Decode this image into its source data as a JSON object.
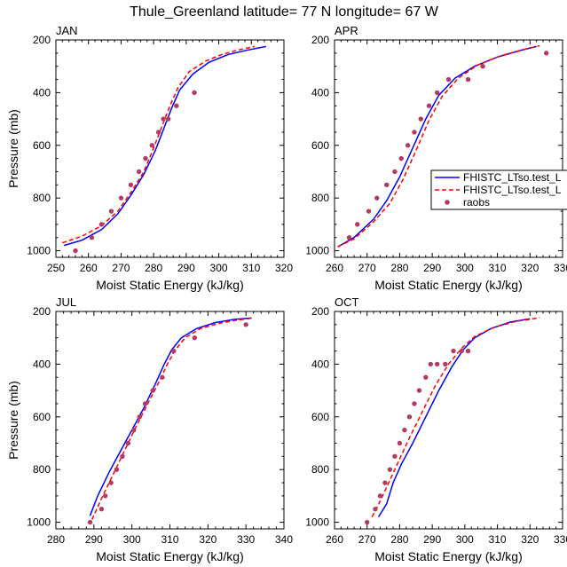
{
  "figure_title": "Thule_Greenland  latitude= 77 N longitude= 67 W",
  "legend": {
    "entries": [
      {
        "label": "FHISTC_LTso.test_L",
        "color": "#0000ff",
        "style": "solid"
      },
      {
        "label": "FHISTC_LTso.test_L",
        "color": "#ff0000",
        "style": "dashed"
      },
      {
        "label": "raobs",
        "color": "#b23b64",
        "style": "marker"
      }
    ]
  },
  "colors": {
    "series1": "#0000ff",
    "series2": "#ff0000",
    "obs": "#b23b64"
  },
  "chart_data": [
    {
      "type": "line",
      "panel": "JAN",
      "title": "JAN",
      "xlabel": "Moist Static Energy (kJ/kg)",
      "ylabel": "Pressure (mb)",
      "xlim": [
        250,
        320
      ],
      "ylim": [
        1025,
        200
      ],
      "xticks": [
        250,
        260,
        270,
        280,
        290,
        300,
        310,
        320
      ],
      "yticks": [
        200,
        400,
        600,
        800,
        1000
      ],
      "series": [
        {
          "name": "FHISTC_LTso.test_L",
          "style": "solid",
          "color": "#0000ff",
          "x": [
            252.5,
            258,
            264,
            269,
            273,
            277,
            280.5,
            283,
            285.5,
            288,
            292,
            297,
            303,
            309,
            314.5
          ],
          "y": [
            980,
            960,
            920,
            860,
            790,
            710,
            620,
            540,
            460,
            390,
            330,
            285,
            255,
            238,
            225
          ]
        },
        {
          "name": "FHISTC_LTso.test_L",
          "style": "dashed",
          "color": "#ff0000",
          "x": [
            252,
            258,
            264,
            269,
            273,
            277,
            280,
            282.5,
            285,
            287.5,
            291,
            296,
            301,
            306,
            311
          ],
          "y": [
            970,
            945,
            905,
            850,
            780,
            700,
            610,
            530,
            450,
            380,
            320,
            280,
            255,
            238,
            225
          ]
        },
        {
          "name": "raobs",
          "style": "marker",
          "color": "#b23b64",
          "x": [
            256,
            261,
            264,
            267,
            270,
            273,
            275.5,
            277.5,
            279.5,
            281.5,
            283,
            284.5,
            287,
            292.5
          ],
          "y": [
            1000,
            950,
            900,
            850,
            800,
            750,
            700,
            650,
            600,
            550,
            500,
            500,
            450,
            400
          ]
        }
      ]
    },
    {
      "type": "line",
      "panel": "APR",
      "title": "APR",
      "xlabel": "Moist Static Energy (kJ/kg)",
      "ylabel": "Pressure (mb)",
      "xlim": [
        260,
        330
      ],
      "ylim": [
        1025,
        200
      ],
      "xticks": [
        260,
        270,
        280,
        290,
        300,
        310,
        320,
        330
      ],
      "yticks": [
        200,
        400,
        600,
        800,
        1000
      ],
      "series": [
        {
          "name": "FHISTC_LTso.test_L",
          "style": "solid",
          "color": "#0000ff",
          "x": [
            261,
            266,
            272,
            276,
            280,
            284,
            288,
            292,
            297,
            303,
            310,
            317,
            322
          ],
          "y": [
            985,
            950,
            880,
            810,
            720,
            610,
            500,
            410,
            345,
            300,
            265,
            240,
            225
          ]
        },
        {
          "name": "FHISTC_LTso.test_L",
          "style": "dashed",
          "color": "#ff0000",
          "x": [
            261,
            266,
            272,
            277,
            281,
            285,
            289,
            293,
            298,
            304,
            311,
            318,
            323
          ],
          "y": [
            985,
            955,
            890,
            820,
            730,
            620,
            505,
            415,
            345,
            295,
            260,
            237,
            222
          ]
        },
        {
          "name": "raobs",
          "style": "marker",
          "color": "#b23b64",
          "x": [
            264.5,
            267,
            270.5,
            273,
            276,
            278.5,
            280.5,
            282.5,
            284.5,
            286.5,
            289,
            291.5,
            295,
            301,
            305.5,
            325
          ],
          "y": [
            950,
            900,
            850,
            800,
            750,
            700,
            650,
            600,
            550,
            500,
            450,
            400,
            350,
            350,
            300,
            250
          ]
        }
      ]
    },
    {
      "type": "line",
      "panel": "JUL",
      "title": "JUL",
      "xlabel": "Moist Static Energy (kJ/kg)",
      "ylabel": "Pressure (mb)",
      "xlim": [
        280,
        340
      ],
      "ylim": [
        1025,
        200
      ],
      "xticks": [
        280,
        290,
        300,
        310,
        320,
        330,
        340
      ],
      "yticks": [
        200,
        400,
        600,
        800,
        1000
      ],
      "series": [
        {
          "name": "FHISTC_LTso.test_L",
          "style": "solid",
          "color": "#0000ff",
          "x": [
            289,
            291,
            294,
            297,
            300,
            303,
            306,
            308.5,
            310.5,
            313,
            317,
            322,
            327,
            331.5
          ],
          "y": [
            975,
            900,
            810,
            730,
            650,
            570,
            480,
            400,
            345,
            300,
            265,
            242,
            230,
            225
          ]
        },
        {
          "name": "FHISTC_LTso.test_L",
          "style": "dashed",
          "color": "#ff0000",
          "x": [
            289.5,
            292,
            295,
            298,
            301,
            304,
            307,
            309.5,
            311.5,
            314,
            318,
            323,
            328,
            332
          ],
          "y": [
            990,
            910,
            820,
            730,
            640,
            555,
            470,
            395,
            345,
            300,
            265,
            245,
            232,
            225
          ]
        },
        {
          "name": "raobs",
          "style": "marker",
          "color": "#b23b64",
          "x": [
            289,
            292,
            293,
            294.5,
            296,
            297.5,
            299,
            300.5,
            302,
            303.5,
            305.5,
            308,
            311,
            316.5,
            330
          ],
          "y": [
            1000,
            950,
            900,
            850,
            800,
            750,
            700,
            650,
            600,
            550,
            500,
            450,
            350,
            300,
            250
          ]
        }
      ]
    },
    {
      "type": "line",
      "panel": "OCT",
      "title": "OCT",
      "xlabel": "Moist Static Energy (kJ/kg)",
      "ylabel": "Pressure (mb)",
      "xlim": [
        260,
        330
      ],
      "ylim": [
        1025,
        200
      ],
      "xticks": [
        260,
        270,
        280,
        290,
        300,
        310,
        320,
        330
      ],
      "yticks": [
        200,
        400,
        600,
        800,
        1000
      ],
      "series": [
        {
          "name": "FHISTC_LTso.test_L",
          "style": "solid",
          "color": "#0000ff",
          "x": [
            273.5,
            276,
            278,
            280.5,
            284,
            288,
            292,
            296,
            299.5,
            303,
            308,
            314,
            320
          ],
          "y": [
            980,
            930,
            850,
            780,
            700,
            600,
            500,
            410,
            345,
            300,
            265,
            240,
            228
          ]
        },
        {
          "name": "FHISTC_LTso.test_L",
          "style": "dashed",
          "color": "#ff0000",
          "x": [
            271.5,
            274,
            277,
            280,
            283,
            287,
            291,
            295,
            299,
            303,
            309,
            316,
            323
          ],
          "y": [
            980,
            920,
            840,
            760,
            680,
            580,
            480,
            400,
            340,
            295,
            260,
            237,
            224
          ]
        },
        {
          "name": "raobs",
          "style": "marker",
          "color": "#b23b64",
          "x": [
            270,
            272.5,
            274,
            275.5,
            277,
            278.5,
            280,
            281.5,
            283,
            284.5,
            286,
            288,
            289.5,
            291.5,
            294,
            296.5,
            299,
            301
          ],
          "y": [
            1000,
            950,
            900,
            850,
            800,
            750,
            700,
            650,
            600,
            550,
            500,
            450,
            400,
            400,
            400,
            350,
            350,
            350
          ]
        }
      ]
    }
  ]
}
